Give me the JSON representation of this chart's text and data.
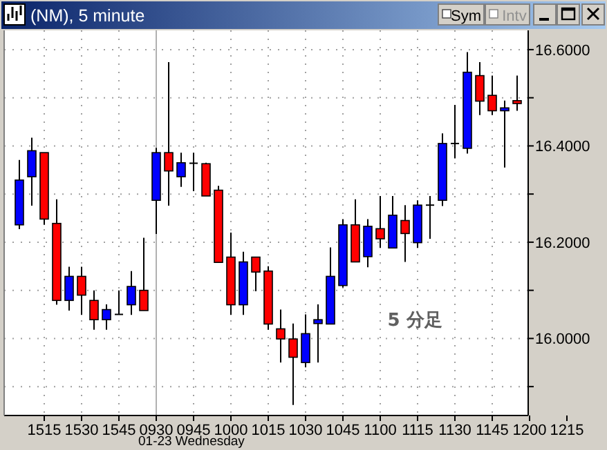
{
  "chart_data": {
    "type": "candlestick",
    "title": "(NM), 5 minute",
    "categories": [
      null,
      null,
      "1515",
      null,
      null,
      "1530",
      null,
      null,
      "1545",
      null,
      null,
      "0930",
      null,
      null,
      "0945",
      null,
      null,
      "1000",
      null,
      null,
      "1015",
      null,
      null,
      "1030",
      null,
      null,
      "1045",
      null,
      null,
      "1100",
      null,
      null,
      "1115",
      null,
      null,
      "1130",
      null,
      null,
      "1145",
      null,
      null,
      "1200",
      null,
      null,
      "1215"
    ],
    "ohlc": [
      [
        16.236,
        16.371,
        16.227,
        16.329
      ],
      [
        16.336,
        16.417,
        16.276,
        16.39
      ],
      [
        16.386,
        16.386,
        16.236,
        16.248
      ],
      [
        16.239,
        16.289,
        16.07,
        16.079
      ],
      [
        16.079,
        16.149,
        16.058,
        16.129
      ],
      [
        16.129,
        16.149,
        16.049,
        16.09
      ],
      [
        16.079,
        16.1,
        16.018,
        16.039
      ],
      [
        16.039,
        16.071,
        16.018,
        16.06
      ],
      [
        16.05,
        16.1,
        16.05,
        16.05
      ],
      [
        16.07,
        16.14,
        16.049,
        16.108
      ],
      [
        16.1,
        16.209,
        16.058,
        16.058
      ],
      [
        16.287,
        16.396,
        16.217,
        16.386
      ],
      [
        16.386,
        16.574,
        16.276,
        16.348
      ],
      [
        16.336,
        16.386,
        16.315,
        16.365
      ],
      [
        16.364,
        16.386,
        16.306,
        16.364
      ],
      [
        16.363,
        16.365,
        16.296,
        16.296
      ],
      [
        16.308,
        16.317,
        16.158,
        16.158
      ],
      [
        16.169,
        16.22,
        16.049,
        16.07
      ],
      [
        16.07,
        16.18,
        16.049,
        16.159
      ],
      [
        16.169,
        16.169,
        16.098,
        16.138
      ],
      [
        16.14,
        16.15,
        16.018,
        16.03
      ],
      [
        16.02,
        16.06,
        15.95,
        15.999
      ],
      [
        15.999,
        16.031,
        15.862,
        15.961
      ],
      [
        15.95,
        16.05,
        15.94,
        16.01
      ],
      [
        16.031,
        16.071,
        15.95,
        16.039
      ],
      [
        16.03,
        16.189,
        16.03,
        16.129
      ],
      [
        16.11,
        16.248,
        16.106,
        16.236
      ],
      [
        16.236,
        16.289,
        16.159,
        16.159
      ],
      [
        16.17,
        16.248,
        16.148,
        16.233
      ],
      [
        16.228,
        16.296,
        16.188,
        16.207
      ],
      [
        16.188,
        16.296,
        16.188,
        16.256
      ],
      [
        16.245,
        16.277,
        16.159,
        16.218
      ],
      [
        16.199,
        16.287,
        16.188,
        16.277
      ],
      [
        16.277,
        16.296,
        16.207,
        16.277
      ],
      [
        16.287,
        16.426,
        16.275,
        16.405
      ],
      [
        16.405,
        16.485,
        16.374,
        16.405
      ],
      [
        16.395,
        16.595,
        16.384,
        16.553
      ],
      [
        16.546,
        16.574,
        16.464,
        16.493
      ],
      [
        16.505,
        16.546,
        16.464,
        16.473
      ],
      [
        16.473,
        16.494,
        16.355,
        16.479
      ],
      [
        16.494,
        16.546,
        16.473,
        16.488
      ],
      null,
      null,
      null,
      null
    ],
    "colors": [
      "#0000ff",
      "#0000ff",
      "#ff0000",
      "#ff0000",
      "#0000ff",
      "#ff0000",
      "#ff0000",
      "#0000ff",
      "#000000",
      "#0000ff",
      "#ff0000",
      "#0000ff",
      "#ff0000",
      "#0000ff",
      "#000000",
      "#ff0000",
      "#ff0000",
      "#ff0000",
      "#0000ff",
      "#ff0000",
      "#ff0000",
      "#ff0000",
      "#ff0000",
      "#0000ff",
      "#0000ff",
      "#0000ff",
      "#0000ff",
      "#ff0000",
      "#0000ff",
      "#ff0000",
      "#0000ff",
      "#ff0000",
      "#0000ff",
      "#000000",
      "#0000ff",
      "#000000",
      "#0000ff",
      "#ff0000",
      "#ff0000",
      "#0000ff",
      "#ff0000",
      null,
      null,
      null,
      null
    ],
    "ylim": [
      15.84,
      16.64
    ],
    "yticks": [
      {
        "value": 15.9,
        "label": null
      },
      {
        "value": 16.0,
        "label": "16.0000"
      },
      {
        "value": 16.1,
        "label": null
      },
      {
        "value": 16.2,
        "label": "16.2000"
      },
      {
        "value": 16.3,
        "label": null
      },
      {
        "value": 16.4,
        "label": "16.4000"
      },
      {
        "value": 16.5,
        "label": null
      },
      {
        "value": 16.6,
        "label": "16.6000"
      }
    ],
    "grid": true,
    "ref_lines": [
      {
        "axis": "x",
        "value": "0930",
        "color": "#b0b0b0"
      }
    ],
    "annotations": [
      "01-23 Wednesday",
      "5 分足",
      "Sym",
      "Intv"
    ]
  }
}
